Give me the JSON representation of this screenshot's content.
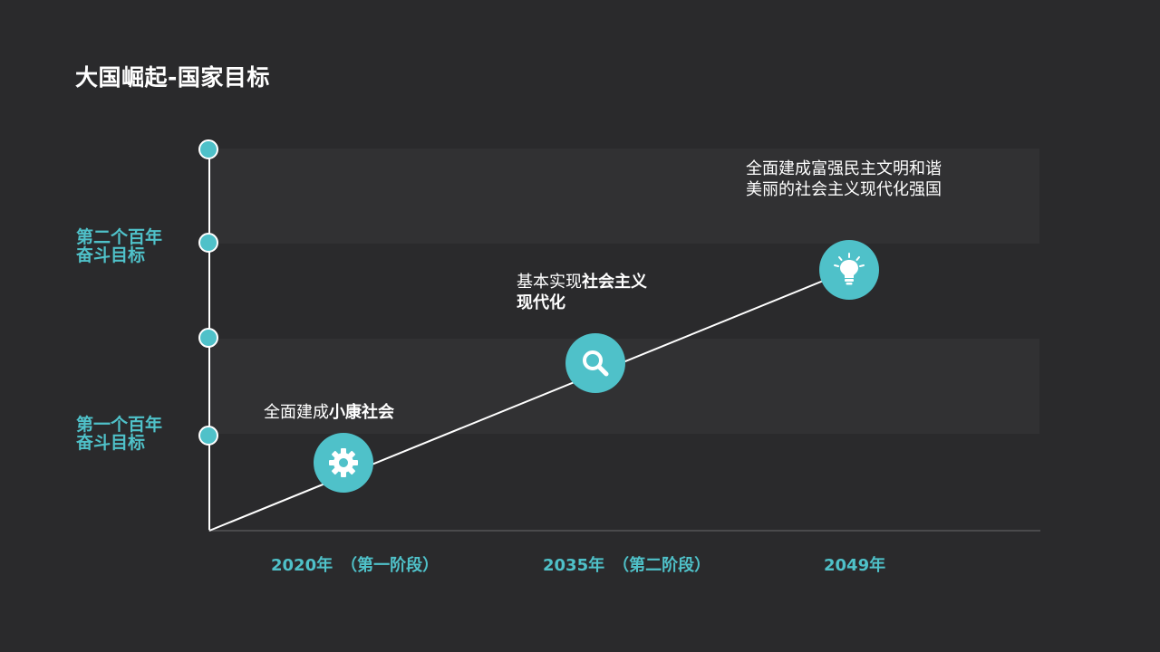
{
  "slide": {
    "title": "大国崛起-国家目标"
  },
  "goals": [
    {
      "line1": "第二个百年",
      "line2": "奋斗目标"
    },
    {
      "line1": "第一个百年",
      "line2": "奋斗目标"
    }
  ],
  "milestones": [
    {
      "icon": "gear-icon",
      "text_plain": "全面建成",
      "text_bold": "小康社会"
    },
    {
      "icon": "search-icon",
      "text_plain": "基本实现",
      "text_bold": "社会主义现代化"
    },
    {
      "icon": "lightbulb-icon",
      "text_plain": "全面建成富强民主文明和谐美丽的社会主义现代化强国",
      "text_bold": ""
    }
  ],
  "x_labels": [
    {
      "year": "2020年",
      "stage": "（第一阶段）"
    },
    {
      "year": "2035年",
      "stage": "（第二阶段）"
    },
    {
      "year": "2049年",
      "stage": ""
    }
  ],
  "colors": {
    "background": "#2a2a2c",
    "band": "#313133",
    "accent": "#4fc1c9",
    "text": "#ffffff"
  }
}
